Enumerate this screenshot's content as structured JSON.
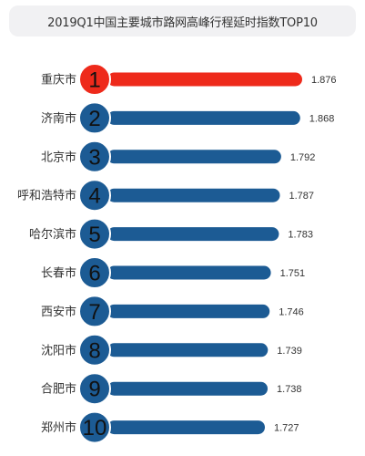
{
  "chart_data": {
    "type": "bar",
    "orientation": "horizontal",
    "title": "2019Q1中国主要城市路网高峰行程延时指数TOP10",
    "categories": [
      "重庆市",
      "济南市",
      "北京市",
      "呼和浩特市",
      "哈尔滨市",
      "长春市",
      "西安市",
      "沈阳市",
      "合肥市",
      "郑州市"
    ],
    "ranks": [
      "1",
      "2",
      "3",
      "4",
      "5",
      "6",
      "7",
      "8",
      "9",
      "10"
    ],
    "values": [
      1.876,
      1.868,
      1.792,
      1.787,
      1.783,
      1.751,
      1.746,
      1.739,
      1.738,
      1.727
    ],
    "value_labels": [
      "1.876",
      "1.868",
      "1.792",
      "1.787",
      "1.783",
      "1.751",
      "1.746",
      "1.739",
      "1.738",
      "1.727"
    ],
    "xlabel": "",
    "ylabel": "",
    "grid": false,
    "legend": "none",
    "colors": {
      "highlight": "#ee2a1b",
      "bar": "#1c5b94",
      "circle_stroke": "#ffffff"
    }
  }
}
